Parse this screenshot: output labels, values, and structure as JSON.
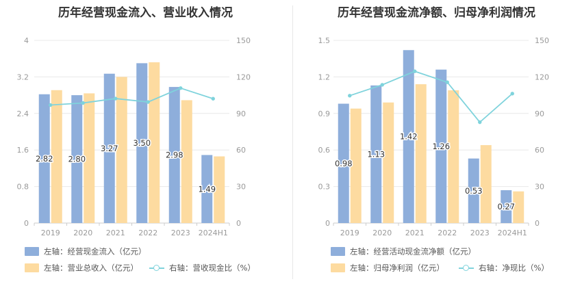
{
  "colors": {
    "bar1": "#8eaedb",
    "bar2": "#fddba0",
    "line": "#7fd3dc",
    "grid": "#e8e8e8",
    "axis": "#999999",
    "label": "#333333"
  },
  "chart_data": [
    {
      "type": "bar",
      "title": "历年经营现金流入、营业收入情况",
      "categories": [
        "2019",
        "2020",
        "2021",
        "2022",
        "2023",
        "2024H1"
      ],
      "y_left": {
        "ticks": [
          "0",
          "0.8",
          "1.6",
          "2.4",
          "3.2",
          "4"
        ],
        "min": 0,
        "max": 4
      },
      "y_right": {
        "ticks": [
          "0",
          "30",
          "60",
          "90",
          "120",
          "150"
        ],
        "min": 0,
        "max": 150
      },
      "series": [
        {
          "name": "左轴：经营现金流入（亿元）",
          "kind": "bar",
          "axis": "left",
          "values": [
            2.82,
            2.8,
            3.27,
            3.5,
            2.98,
            1.49
          ],
          "labels": [
            "2.82",
            "2.80",
            "3.27",
            "3.50",
            "2.98",
            "1.49"
          ]
        },
        {
          "name": "左轴：营业总收入（亿元）",
          "kind": "bar",
          "axis": "left",
          "values": [
            2.91,
            2.84,
            3.2,
            3.52,
            2.69,
            1.46
          ]
        },
        {
          "name": "右轴：营收现金比（%）",
          "kind": "line",
          "axis": "right",
          "values": [
            96.9,
            98.6,
            102.2,
            99.4,
            110.8,
            102.1
          ]
        }
      ]
    },
    {
      "type": "bar",
      "title": "历年经营现金流净额、归母净利润情况",
      "categories": [
        "2019",
        "2020",
        "2021",
        "2022",
        "2023",
        "2024H1"
      ],
      "y_left": {
        "ticks": [
          "0",
          "0.3",
          "0.6",
          "0.9",
          "1.2",
          "1.5"
        ],
        "min": 0,
        "max": 1.5
      },
      "y_right": {
        "ticks": [
          "0",
          "30",
          "60",
          "90",
          "120",
          "150"
        ],
        "min": 0,
        "max": 150
      },
      "series": [
        {
          "name": "左轴：经营活动现金流净额（亿元）",
          "kind": "bar",
          "axis": "left",
          "values": [
            0.98,
            1.13,
            1.42,
            1.26,
            0.53,
            0.27
          ],
          "labels": [
            "0.98",
            "1.13",
            "1.42",
            "1.26",
            "0.53",
            "0.27"
          ]
        },
        {
          "name": "左轴：归母净利润（亿元）",
          "kind": "bar",
          "axis": "left",
          "values": [
            0.94,
            0.99,
            1.14,
            1.09,
            0.64,
            0.26
          ]
        },
        {
          "name": "右轴：净现比（%）",
          "kind": "line",
          "axis": "right",
          "values": [
            104.6,
            113.5,
            124.6,
            115.6,
            82.8,
            106.3
          ]
        }
      ]
    }
  ]
}
